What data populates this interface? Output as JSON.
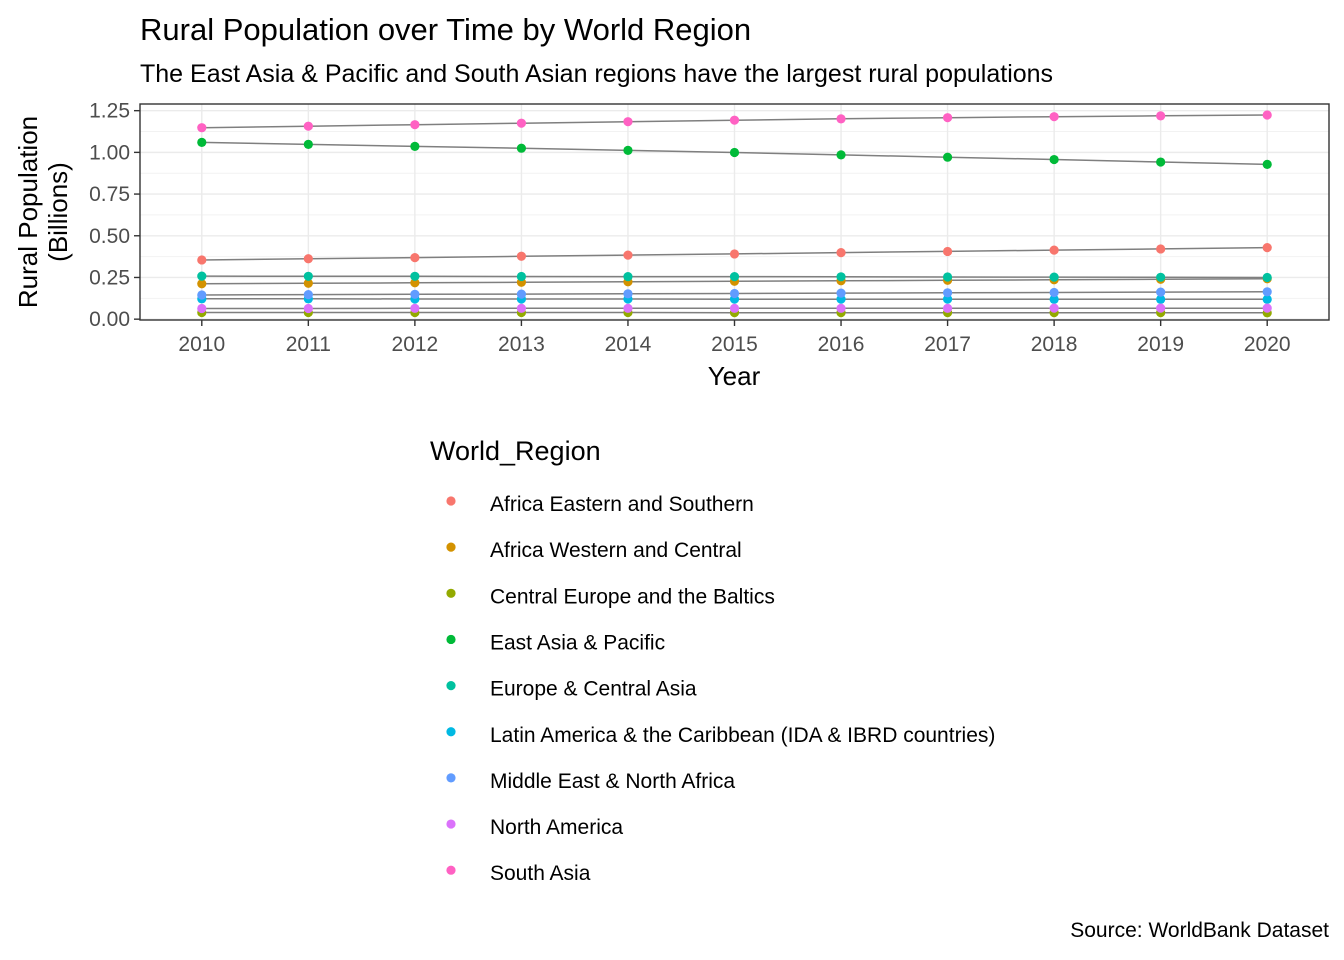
{
  "chart_data": {
    "type": "line",
    "title": "Rural Population over Time by World Region",
    "subtitle": "The East Asia & Pacific and South Asian regions have the largest rural populations",
    "caption": "Source: WorldBank Dataset",
    "xlabel": "Year",
    "ylabel": "Rural Population\n(Billions)",
    "x": [
      2010,
      2011,
      2012,
      2013,
      2014,
      2015,
      2016,
      2017,
      2018,
      2019,
      2020
    ],
    "xlim": [
      2009.42,
      2020.58
    ],
    "ylim": [
      -0.005,
      1.29
    ],
    "yticks": [
      0.0,
      0.25,
      0.5,
      0.75,
      1.0,
      1.25
    ],
    "ytick_labels": [
      "0.00",
      "0.25",
      "0.50",
      "0.75",
      "1.00",
      "1.25"
    ],
    "grid": true,
    "line_color": "#7f7f7f",
    "legend": {
      "title": "World_Region",
      "placement": "bottom"
    },
    "series": [
      {
        "name": "Africa Eastern and Southern",
        "color": "#F8766D",
        "values": [
          0.355,
          0.362,
          0.369,
          0.377,
          0.384,
          0.391,
          0.399,
          0.406,
          0.414,
          0.421,
          0.429
        ]
      },
      {
        "name": "Africa Western and Central",
        "color": "#D39200",
        "values": [
          0.212,
          0.215,
          0.218,
          0.221,
          0.224,
          0.227,
          0.23,
          0.233,
          0.236,
          0.239,
          0.242
        ]
      },
      {
        "name": "Central Europe and the Baltics",
        "color": "#93AA00",
        "values": [
          0.04,
          0.04,
          0.04,
          0.04,
          0.04,
          0.039,
          0.039,
          0.039,
          0.039,
          0.039,
          0.038
        ]
      },
      {
        "name": "East Asia & Pacific",
        "color": "#00BA38",
        "values": [
          1.06,
          1.048,
          1.036,
          1.025,
          1.012,
          0.999,
          0.985,
          0.971,
          0.957,
          0.942,
          0.928
        ]
      },
      {
        "name": "Europe & Central Asia",
        "color": "#00C19F",
        "values": [
          0.258,
          0.257,
          0.257,
          0.256,
          0.255,
          0.255,
          0.254,
          0.253,
          0.252,
          0.251,
          0.25
        ]
      },
      {
        "name": "Latin America & the Caribbean (IDA & IBRD countries)",
        "color": "#00B9E3",
        "values": [
          0.122,
          0.122,
          0.121,
          0.121,
          0.121,
          0.12,
          0.12,
          0.12,
          0.119,
          0.119,
          0.119
        ]
      },
      {
        "name": "Middle East & North Africa",
        "color": "#619CFF",
        "values": [
          0.145,
          0.147,
          0.149,
          0.15,
          0.152,
          0.154,
          0.156,
          0.158,
          0.16,
          0.162,
          0.164
        ]
      },
      {
        "name": "North America",
        "color": "#DB72FB",
        "values": [
          0.064,
          0.064,
          0.065,
          0.065,
          0.065,
          0.065,
          0.065,
          0.065,
          0.066,
          0.066,
          0.066
        ]
      },
      {
        "name": "South Asia",
        "color": "#FF61C3",
        "values": [
          1.148,
          1.157,
          1.166,
          1.175,
          1.184,
          1.193,
          1.201,
          1.208,
          1.214,
          1.219,
          1.224
        ]
      }
    ]
  }
}
